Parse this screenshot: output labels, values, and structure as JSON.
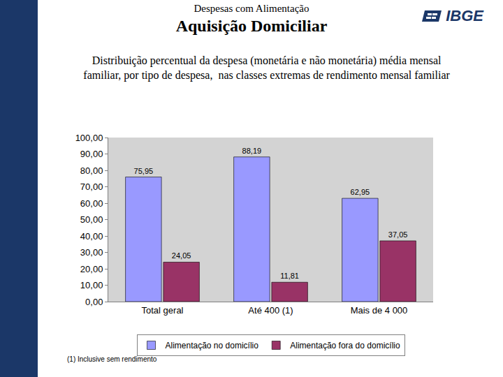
{
  "slide": {
    "logo": "IBGE",
    "heading": "Despesas com Alimentação",
    "heading_overlay": "Aquisição Domiciliar",
    "footnote": "(1) Inclusive sem rendimento"
  },
  "chart_data": {
    "type": "bar",
    "title": "Distribuição percentual da despesa (monetária e não monetária) média mensal\nfamiliar, por tipo de despesa,  nas classes extremas de rendimento mensal familiar",
    "categories": [
      "Total geral",
      "Até 400 (1)",
      "Mais de 4 000"
    ],
    "series": [
      {
        "name": "Alimentação no domicílio",
        "color": "#9999ff",
        "values": [
          75.95,
          88.19,
          62.95
        ],
        "value_labels": [
          "75,95",
          "88,19",
          "62,95"
        ]
      },
      {
        "name": "Alimentação fora do domicílio",
        "color": "#993366",
        "values": [
          24.05,
          11.81,
          37.05
        ],
        "value_labels": [
          "24,05",
          "11,81",
          "37,05"
        ]
      }
    ],
    "ylim": [
      0,
      100
    ],
    "yticks": [
      {
        "value": 0,
        "label": "0,00"
      },
      {
        "value": 10,
        "label": "10,00"
      },
      {
        "value": 20,
        "label": "20,00"
      },
      {
        "value": 30,
        "label": "30,00"
      },
      {
        "value": 40,
        "label": "40,00"
      },
      {
        "value": 50,
        "label": "50,00"
      },
      {
        "value": 60,
        "label": "60,00"
      },
      {
        "value": 70,
        "label": "70,00"
      },
      {
        "value": 80,
        "label": "80,00"
      },
      {
        "value": 90,
        "label": "90,00"
      },
      {
        "value": 100,
        "label": "100,00"
      }
    ],
    "grid": false,
    "legend": "bottom",
    "data_labels": true
  }
}
